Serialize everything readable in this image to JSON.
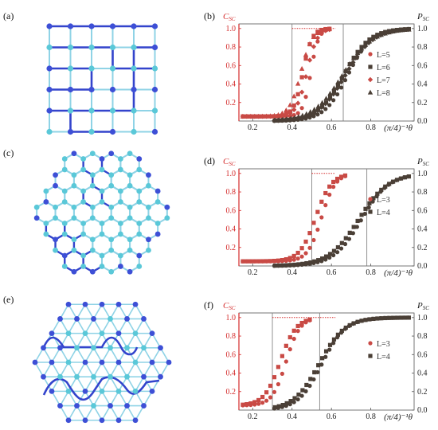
{
  "panels": [
    {
      "id": "a",
      "label": "(a)",
      "lattice": "square"
    },
    {
      "id": "c",
      "label": "(c)",
      "lattice": "honeycomb"
    },
    {
      "id": "e",
      "label": "(e)",
      "lattice": "triangular"
    }
  ],
  "colors": {
    "site_dark": "#3d4fd6",
    "site_light": "#5ac8d8",
    "bond_light": "#8fd3e6",
    "path": "#3344cc",
    "red_axis": "#d42a2a",
    "pc_shade": "#c94a45",
    "ps_shade": "#4a3f36"
  },
  "chart_data": [
    {
      "label": "(b)",
      "type": "scatter",
      "left_axis": {
        "label": "C",
        "sub": "SC",
        "ticks": [
          "0.2",
          "0.4",
          "0.6",
          "0.8",
          "1.0"
        ]
      },
      "right_axis": {
        "label": "P",
        "sub": "SC",
        "ticks": [
          "0.0",
          "0.2",
          "0.4",
          "0.6",
          "0.8",
          "1.0"
        ]
      },
      "xlabel": "(π/4)⁻¹θ",
      "x_ticks": [
        "0.2",
        "0.4",
        "0.6",
        "0.8"
      ],
      "xlim": [
        0.13,
        1.02
      ],
      "ylim": [
        0,
        1.05
      ],
      "threshold_x": [
        0.4,
        0.66
      ],
      "legend": [
        "L=5",
        "L=6",
        "L=7",
        "L=8"
      ],
      "markers": [
        "circle",
        "square",
        "diamond",
        "triangle"
      ],
      "c_center": 0.455,
      "c_width": 0.02,
      "p_center": 0.66,
      "p_width": 0.06,
      "rise_order": [
        0.04,
        0.0,
        0.02,
        -0.01
      ]
    },
    {
      "label": "(d)",
      "type": "scatter",
      "left_axis": {
        "label": "C",
        "sub": "SC",
        "ticks": [
          "0.2",
          "0.4",
          "0.6",
          "0.8",
          "1.0"
        ]
      },
      "right_axis": {
        "label": "P",
        "sub": "SC",
        "ticks": [
          "0.0",
          "0.2",
          "0.4",
          "0.6",
          "0.8",
          "1.0"
        ]
      },
      "xlabel": "(π/4)⁻¹θ",
      "x_ticks": [
        "0.2",
        "0.4",
        "0.6",
        "0.8"
      ],
      "xlim": [
        0.13,
        1.02
      ],
      "ylim": [
        0,
        1.05
      ],
      "threshold_x": [
        0.5,
        0.78
      ],
      "legend": [
        "L=3",
        "L=4"
      ],
      "markers": [
        "circle",
        "square"
      ],
      "c_center": 0.53,
      "c_width": 0.035,
      "p_center": 0.74,
      "p_width": 0.07,
      "rise_order": [
        0.02,
        -0.01
      ]
    },
    {
      "label": "(f)",
      "type": "scatter",
      "left_axis": {
        "label": "C",
        "sub": "SC",
        "ticks": [
          "0.2",
          "0.4",
          "0.6",
          "0.8",
          "1.0"
        ]
      },
      "right_axis": {
        "label": "P",
        "sub": "SC",
        "ticks": [
          "0.0",
          "0.2",
          "0.4",
          "0.6",
          "0.8",
          "1.0"
        ]
      },
      "xlabel": "(π/4)⁻¹θ",
      "x_ticks": [
        "0.2",
        "0.4",
        "0.6",
        "0.8"
      ],
      "xlim": [
        0.13,
        1.02
      ],
      "ylim": [
        0,
        1.05
      ],
      "threshold_x": [
        0.3,
        0.54
      ],
      "legend": [
        "L=3",
        "L=4"
      ],
      "markers": [
        "circle",
        "square"
      ],
      "c_center": 0.35,
      "c_width": 0.035,
      "p_center": 0.54,
      "p_width": 0.06,
      "rise_order": [
        0.02,
        -0.01
      ]
    }
  ]
}
